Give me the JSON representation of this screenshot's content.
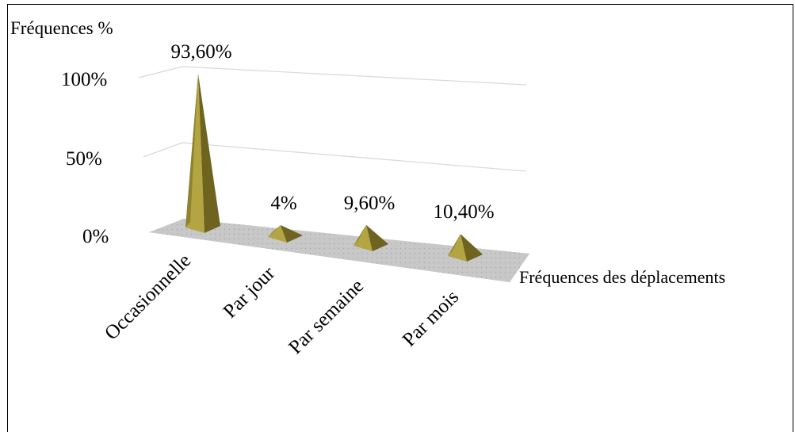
{
  "chart_data": {
    "type": "bar",
    "style": "3d-pyramid",
    "ylabel": "Fréquences %",
    "xlabel": "Fréquences des déplacements",
    "categories": [
      "Occasionnelle",
      "Par jour",
      "Par semaine",
      "Par mois"
    ],
    "values": [
      93.6,
      4,
      9.6,
      10.4
    ],
    "data_labels": [
      "93,60%",
      "4%",
      "9,60%",
      "10,40%"
    ],
    "y_ticks": [
      "0%",
      "50%",
      "100%"
    ],
    "ylim": [
      0,
      100
    ],
    "grid": true,
    "colors": {
      "face_light": "#b3a542",
      "face_dark": "#6e6420",
      "face_mid": "#8f8330",
      "floor": "#c8c8c8",
      "grid": "#d9d9d9"
    }
  }
}
